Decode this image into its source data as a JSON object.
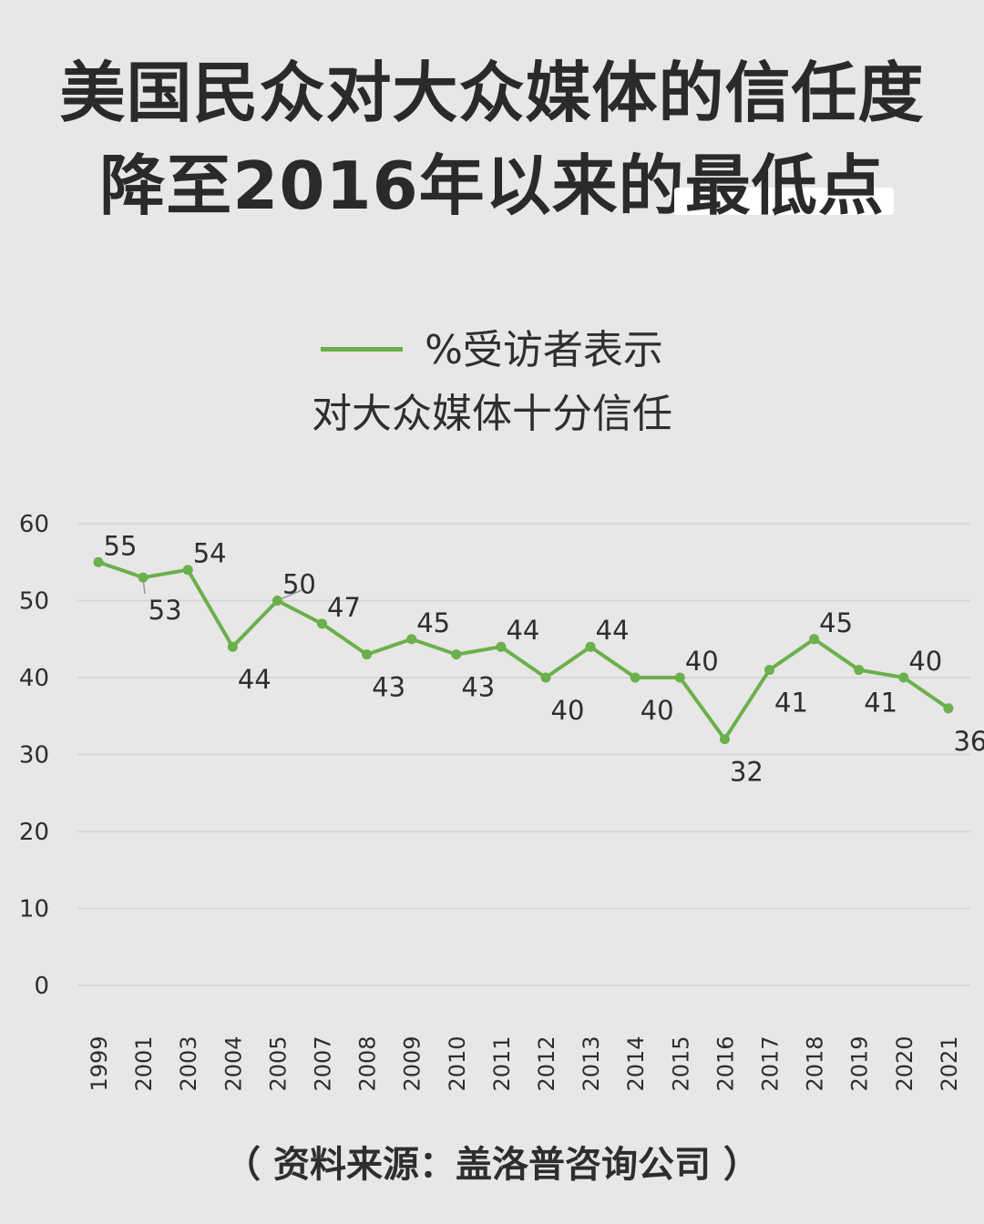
{
  "title": {
    "line1": "美国民众对大众媒体的信任度",
    "line2_prefix": "降至2016年以来的",
    "line2_highlight": "最低点"
  },
  "legend": {
    "line1": "%受访者表示",
    "line2": "对大众媒体十分信任",
    "color": "#6ab04c"
  },
  "source": "（ 资料来源：盖洛普咨询公司 ）",
  "chart_data": {
    "type": "line",
    "categories": [
      "1999",
      "2001",
      "2003",
      "2004",
      "2005",
      "2007",
      "2008",
      "2009",
      "2010",
      "2011",
      "2012",
      "2013",
      "2014",
      "2015",
      "2016",
      "2017",
      "2018",
      "2019",
      "2020",
      "2021"
    ],
    "series": [
      {
        "name": "%受访者表示对大众媒体十分信任",
        "values": [
          55,
          53,
          54,
          44,
          50,
          47,
          43,
          45,
          43,
          44,
          40,
          44,
          40,
          40,
          32,
          41,
          45,
          41,
          40,
          36
        ]
      }
    ],
    "data_labels": [
      "55",
      "53",
      "54",
      "44",
      "50",
      "47",
      "43",
      "45",
      "43",
      "44",
      "40",
      "44",
      "40",
      "40",
      "32",
      "41",
      "45",
      "41",
      "40",
      "36"
    ],
    "y_ticks": [
      0,
      10,
      20,
      30,
      40,
      50,
      60
    ],
    "ylim": [
      0,
      60
    ],
    "grid": true,
    "line_color": "#6ab04c",
    "grid_color": "#d4d2d2"
  }
}
